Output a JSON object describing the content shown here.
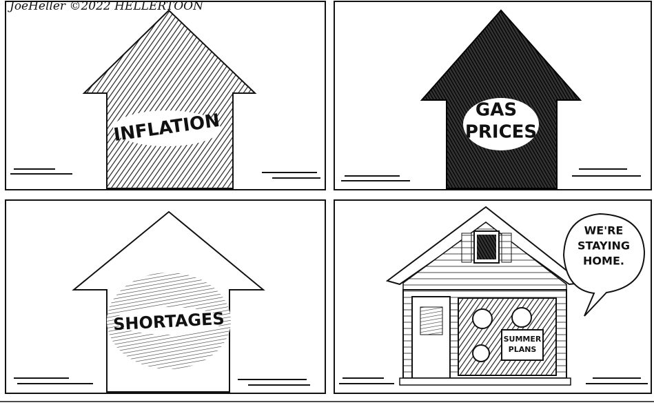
{
  "signature": "JoeHeller ©2022 HELLERTOON",
  "panels": [
    {
      "label_lines": [
        "INFLATION"
      ]
    },
    {
      "label_lines": [
        "GAS",
        "PRICES"
      ]
    },
    {
      "label_lines": [
        "SHORTAGES"
      ]
    },
    {
      "speech_lines": [
        "WE'RE",
        "STAYING",
        "HOME."
      ],
      "sign_lines": [
        "SUMMER",
        "PLANS"
      ]
    }
  ]
}
